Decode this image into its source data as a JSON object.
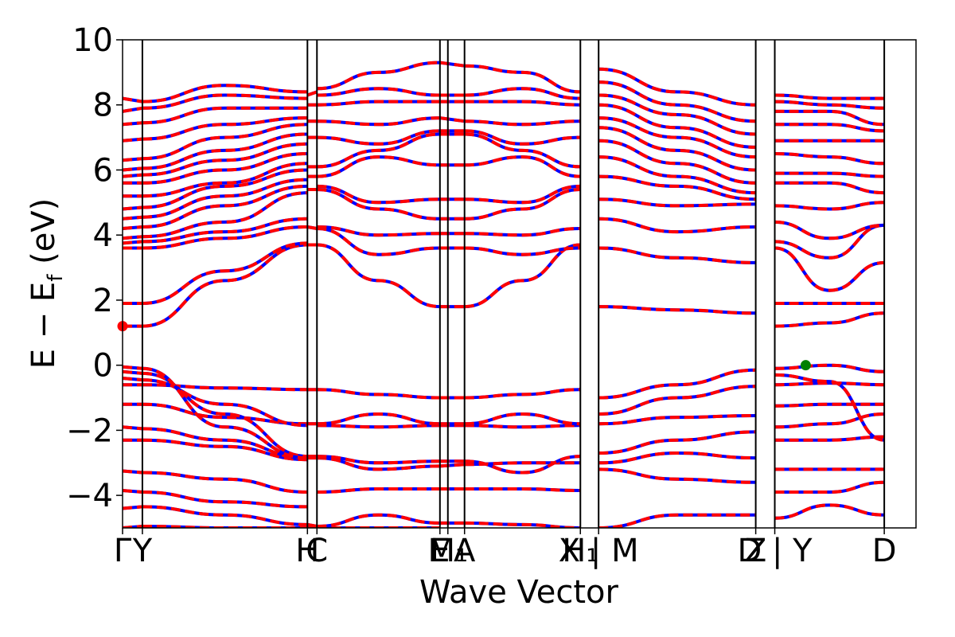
{
  "chart_data": {
    "type": "line",
    "xlabel": "Wave Vector",
    "ylabel": "E − E_f (eV)",
    "ylabel_main": "E − E",
    "ylabel_sub": "f",
    "ylabel_unit": " (eV)",
    "ylim": [
      -5,
      10
    ],
    "yticks": [
      -4,
      -2,
      0,
      2,
      4,
      6,
      8,
      10
    ],
    "ytick_labels": [
      "−4",
      "−2",
      "0",
      "2",
      "4",
      "6",
      "8",
      "10"
    ],
    "xlim": [
      0,
      1
    ],
    "kpoint_positions": [
      0.0,
      0.025,
      0.233,
      0.245,
      0.4,
      0.41,
      0.431,
      0.577,
      0.6,
      0.798,
      0.822,
      0.96
    ],
    "xticks": [
      {
        "x": 0.0,
        "label": "Γ"
      },
      {
        "x": 0.025,
        "label": "Y"
      },
      {
        "x": 0.233,
        "label": "H"
      },
      {
        "x": 0.245,
        "label": "C"
      },
      {
        "x": 0.4,
        "label": "E"
      },
      {
        "x": 0.41,
        "label": "M₁"
      },
      {
        "x": 0.431,
        "label": "A"
      },
      {
        "x": 0.577,
        "label": "H₁"
      },
      {
        "x": 0.6,
        "label": "X | M"
      },
      {
        "x": 0.798,
        "label": "Z"
      },
      {
        "x": 0.822,
        "label": "D | Y"
      },
      {
        "x": 0.96,
        "label": "D"
      }
    ],
    "grid": false,
    "series": [
      {
        "role": "spin_up",
        "color": "#0000ff",
        "style": "solid"
      },
      {
        "role": "spin_down",
        "color": "#ff0000",
        "style": "dashed"
      }
    ],
    "markers": [
      {
        "role": "cbm",
        "x": 0.0,
        "y": 1.2,
        "color": "#ff0000"
      },
      {
        "role": "vbm",
        "x": 0.861,
        "y": 0.0,
        "color": "#008000"
      }
    ],
    "segments": [
      {
        "x0": 0.0,
        "x1": 0.025,
        "bands": [
          [
            -5,
            -4.95
          ],
          [
            -4.4,
            -4.35
          ],
          [
            -3.85,
            -3.9
          ],
          [
            -3.25,
            -3.3
          ],
          [
            -2.3,
            -2.3
          ],
          [
            -1.9,
            -1.95
          ],
          [
            -1.2,
            -1.2
          ],
          [
            -0.6,
            -0.6
          ],
          [
            -0.4,
            -0.45
          ],
          [
            -0.2,
            -0.25
          ],
          [
            -0.05,
            -0.1
          ],
          [
            1.2,
            1.2
          ],
          [
            1.9,
            1.9
          ],
          [
            3.6,
            3.6
          ],
          [
            3.75,
            3.8
          ],
          [
            3.9,
            3.95
          ],
          [
            4.2,
            4.25
          ],
          [
            4.5,
            4.55
          ],
          [
            4.8,
            4.85
          ],
          [
            5.2,
            5.2
          ],
          [
            5.6,
            5.6
          ],
          [
            5.8,
            5.85
          ],
          [
            6.0,
            6.05
          ],
          [
            6.3,
            6.35
          ],
          [
            6.9,
            6.95
          ],
          [
            7.4,
            7.45
          ],
          [
            7.8,
            7.9
          ],
          [
            8.2,
            8.1
          ]
        ]
      },
      {
        "x0": 0.025,
        "x1": 0.233,
        "bands": [
          [
            -4.95,
            -5.0,
            -5.0
          ],
          [
            -4.35,
            -4.6,
            -4.9
          ],
          [
            -3.9,
            -4.2,
            -4.35
          ],
          [
            -3.3,
            -3.5,
            -3.9
          ],
          [
            -2.3,
            -2.5,
            -2.9
          ],
          [
            -1.95,
            -2.3,
            -2.85
          ],
          [
            -1.2,
            -1.6,
            -1.8
          ],
          [
            -0.6,
            -0.7,
            -0.75
          ],
          [
            -0.45,
            -1.2,
            -1.85
          ],
          [
            -0.25,
            -1.5,
            -2.8
          ],
          [
            -0.1,
            -1.9,
            -2.85
          ],
          [
            1.2,
            2.6,
            3.7
          ],
          [
            1.9,
            2.9,
            3.75
          ],
          [
            3.6,
            3.9,
            4.25
          ],
          [
            3.8,
            4.1,
            4.5
          ],
          [
            3.95,
            4.4,
            5.3
          ],
          [
            4.25,
            4.9,
            5.5
          ],
          [
            4.55,
            5.2,
            5.7
          ],
          [
            4.85,
            5.5,
            6.0
          ],
          [
            5.2,
            5.6,
            6.2
          ],
          [
            5.6,
            6.0,
            6.5
          ],
          [
            5.85,
            6.3,
            6.8
          ],
          [
            6.05,
            6.6,
            7.1
          ],
          [
            6.35,
            7.0,
            7.4
          ],
          [
            6.95,
            7.4,
            7.6
          ],
          [
            7.45,
            7.9,
            7.9
          ],
          [
            7.9,
            8.3,
            8.2
          ],
          [
            8.1,
            8.6,
            8.4
          ]
        ]
      },
      {
        "x0": 0.233,
        "x1": 0.245,
        "bands": [
          [
            -5.0,
            -5.0
          ],
          [
            -4.9,
            -4.95
          ],
          [
            -2.8,
            -2.8
          ],
          [
            -2.85,
            -2.85
          ],
          [
            -1.8,
            -1.8
          ],
          [
            -0.75,
            -0.75
          ],
          [
            3.7,
            3.7
          ],
          [
            4.25,
            4.2
          ],
          [
            5.4,
            5.4
          ],
          [
            5.8,
            5.8
          ],
          [
            6.1,
            6.1
          ],
          [
            7.0,
            7.0
          ],
          [
            7.5,
            7.5
          ],
          [
            8.0,
            8.0
          ],
          [
            8.3,
            8.4
          ]
        ]
      },
      {
        "x0": 0.245,
        "x1": 0.4,
        "bands": [
          [
            -5.0,
            -5.0,
            -5.0
          ],
          [
            -4.95,
            -4.6,
            -4.85
          ],
          [
            -3.9,
            -3.8,
            -3.8
          ],
          [
            -2.85,
            -3.2,
            -3.1
          ],
          [
            -2.8,
            -3.0,
            -2.95
          ],
          [
            -1.85,
            -1.9,
            -1.85
          ],
          [
            -1.8,
            -1.5,
            -1.8
          ],
          [
            -0.75,
            -0.9,
            -1.0
          ],
          [
            3.7,
            2.6,
            1.8
          ],
          [
            4.2,
            3.4,
            3.6
          ],
          [
            4.25,
            4.0,
            4.05
          ],
          [
            5.4,
            4.8,
            4.5
          ],
          [
            5.5,
            5.0,
            5.1
          ],
          [
            5.8,
            6.4,
            6.15
          ],
          [
            6.1,
            6.6,
            7.1
          ],
          [
            7.0,
            6.8,
            7.2
          ],
          [
            7.5,
            7.4,
            7.6
          ],
          [
            8.0,
            8.1,
            8.1
          ],
          [
            8.3,
            8.5,
            8.3
          ],
          [
            8.5,
            9.0,
            9.3
          ]
        ]
      },
      {
        "x0": 0.4,
        "x1": 0.431,
        "bands": [
          [
            -4.85,
            -4.85
          ],
          [
            -3.8,
            -3.8
          ],
          [
            -3.1,
            -3.05
          ],
          [
            -2.95,
            -2.95
          ],
          [
            -1.85,
            -1.85
          ],
          [
            -1.8,
            -1.8
          ],
          [
            -1.0,
            -1.0
          ],
          [
            1.8,
            1.8
          ],
          [
            3.6,
            3.6
          ],
          [
            4.05,
            4.05
          ],
          [
            4.5,
            4.5
          ],
          [
            5.1,
            5.1
          ],
          [
            6.15,
            6.15
          ],
          [
            7.1,
            7.1
          ],
          [
            7.2,
            7.2
          ],
          [
            7.6,
            7.5
          ],
          [
            8.1,
            8.1
          ],
          [
            8.3,
            8.3
          ],
          [
            9.3,
            9.2
          ]
        ]
      },
      {
        "x0": 0.431,
        "x1": 0.577,
        "bands": [
          [
            -4.85,
            -4.9,
            -5.0
          ],
          [
            -3.8,
            -3.8,
            -3.85
          ],
          [
            -3.05,
            -3.0,
            -3.0
          ],
          [
            -2.95,
            -3.3,
            -2.8
          ],
          [
            -1.85,
            -1.9,
            -1.85
          ],
          [
            -1.8,
            -1.5,
            -1.8
          ],
          [
            -1.0,
            -0.9,
            -0.75
          ],
          [
            1.8,
            2.6,
            3.7
          ],
          [
            3.6,
            3.4,
            3.6
          ],
          [
            4.05,
            4.0,
            4.2
          ],
          [
            4.5,
            4.8,
            5.4
          ],
          [
            5.1,
            5.0,
            5.5
          ],
          [
            6.15,
            6.4,
            5.8
          ],
          [
            7.1,
            6.6,
            6.1
          ],
          [
            7.2,
            6.8,
            7.0
          ],
          [
            7.5,
            7.4,
            7.5
          ],
          [
            8.1,
            8.1,
            8.0
          ],
          [
            8.3,
            8.5,
            8.2
          ],
          [
            9.2,
            9.0,
            8.4
          ]
        ]
      },
      {
        "x0": 0.6,
        "x1": 0.798,
        "bands": [
          [
            -5.0,
            -4.6,
            -4.6
          ],
          [
            -3.2,
            -3.5,
            -3.6
          ],
          [
            -3.0,
            -2.7,
            -2.85
          ],
          [
            -2.7,
            -2.3,
            -2.05
          ],
          [
            -1.8,
            -1.6,
            -1.55
          ],
          [
            -1.5,
            -1.0,
            -0.65
          ],
          [
            -1.0,
            -0.6,
            -0.15
          ],
          [
            1.8,
            1.7,
            1.6
          ],
          [
            3.6,
            3.3,
            3.15
          ],
          [
            4.5,
            4.1,
            4.25
          ],
          [
            5.1,
            4.9,
            4.95
          ],
          [
            5.8,
            5.5,
            5.1
          ],
          [
            6.4,
            5.8,
            5.3
          ],
          [
            6.9,
            6.2,
            5.6
          ],
          [
            7.3,
            6.6,
            6.0
          ],
          [
            7.6,
            7.0,
            6.4
          ],
          [
            8.0,
            7.3,
            6.7
          ],
          [
            8.3,
            7.7,
            7.1
          ],
          [
            8.7,
            8.0,
            7.5
          ],
          [
            9.1,
            8.4,
            8.0
          ]
        ]
      },
      {
        "x0": 0.822,
        "x1": 0.96,
        "bands": [
          [
            -4.7,
            -4.3,
            -4.6
          ],
          [
            -3.9,
            -3.9,
            -3.6
          ],
          [
            -3.2,
            -3.2,
            -3.2
          ],
          [
            -2.3,
            -2.3,
            -2.2
          ],
          [
            -1.9,
            -1.8,
            -1.5
          ],
          [
            -1.25,
            -1.2,
            -1.2
          ],
          [
            -0.6,
            -0.55,
            -0.6
          ],
          [
            -0.3,
            -0.5,
            -2.3
          ],
          [
            -0.1,
            0.0,
            -0.2
          ],
          [
            1.2,
            1.3,
            1.6
          ],
          [
            1.9,
            1.9,
            1.9
          ],
          [
            3.6,
            2.3,
            3.15
          ],
          [
            3.8,
            3.3,
            4.3
          ],
          [
            4.4,
            3.9,
            4.3
          ],
          [
            4.9,
            4.8,
            5.0
          ],
          [
            5.6,
            5.6,
            5.3
          ],
          [
            5.9,
            5.9,
            5.8
          ],
          [
            6.5,
            6.4,
            6.2
          ],
          [
            6.9,
            6.9,
            6.9
          ],
          [
            7.4,
            7.4,
            7.2
          ],
          [
            7.8,
            7.8,
            7.4
          ],
          [
            8.1,
            8.0,
            7.9
          ],
          [
            8.3,
            8.2,
            8.2
          ]
        ]
      }
    ]
  }
}
